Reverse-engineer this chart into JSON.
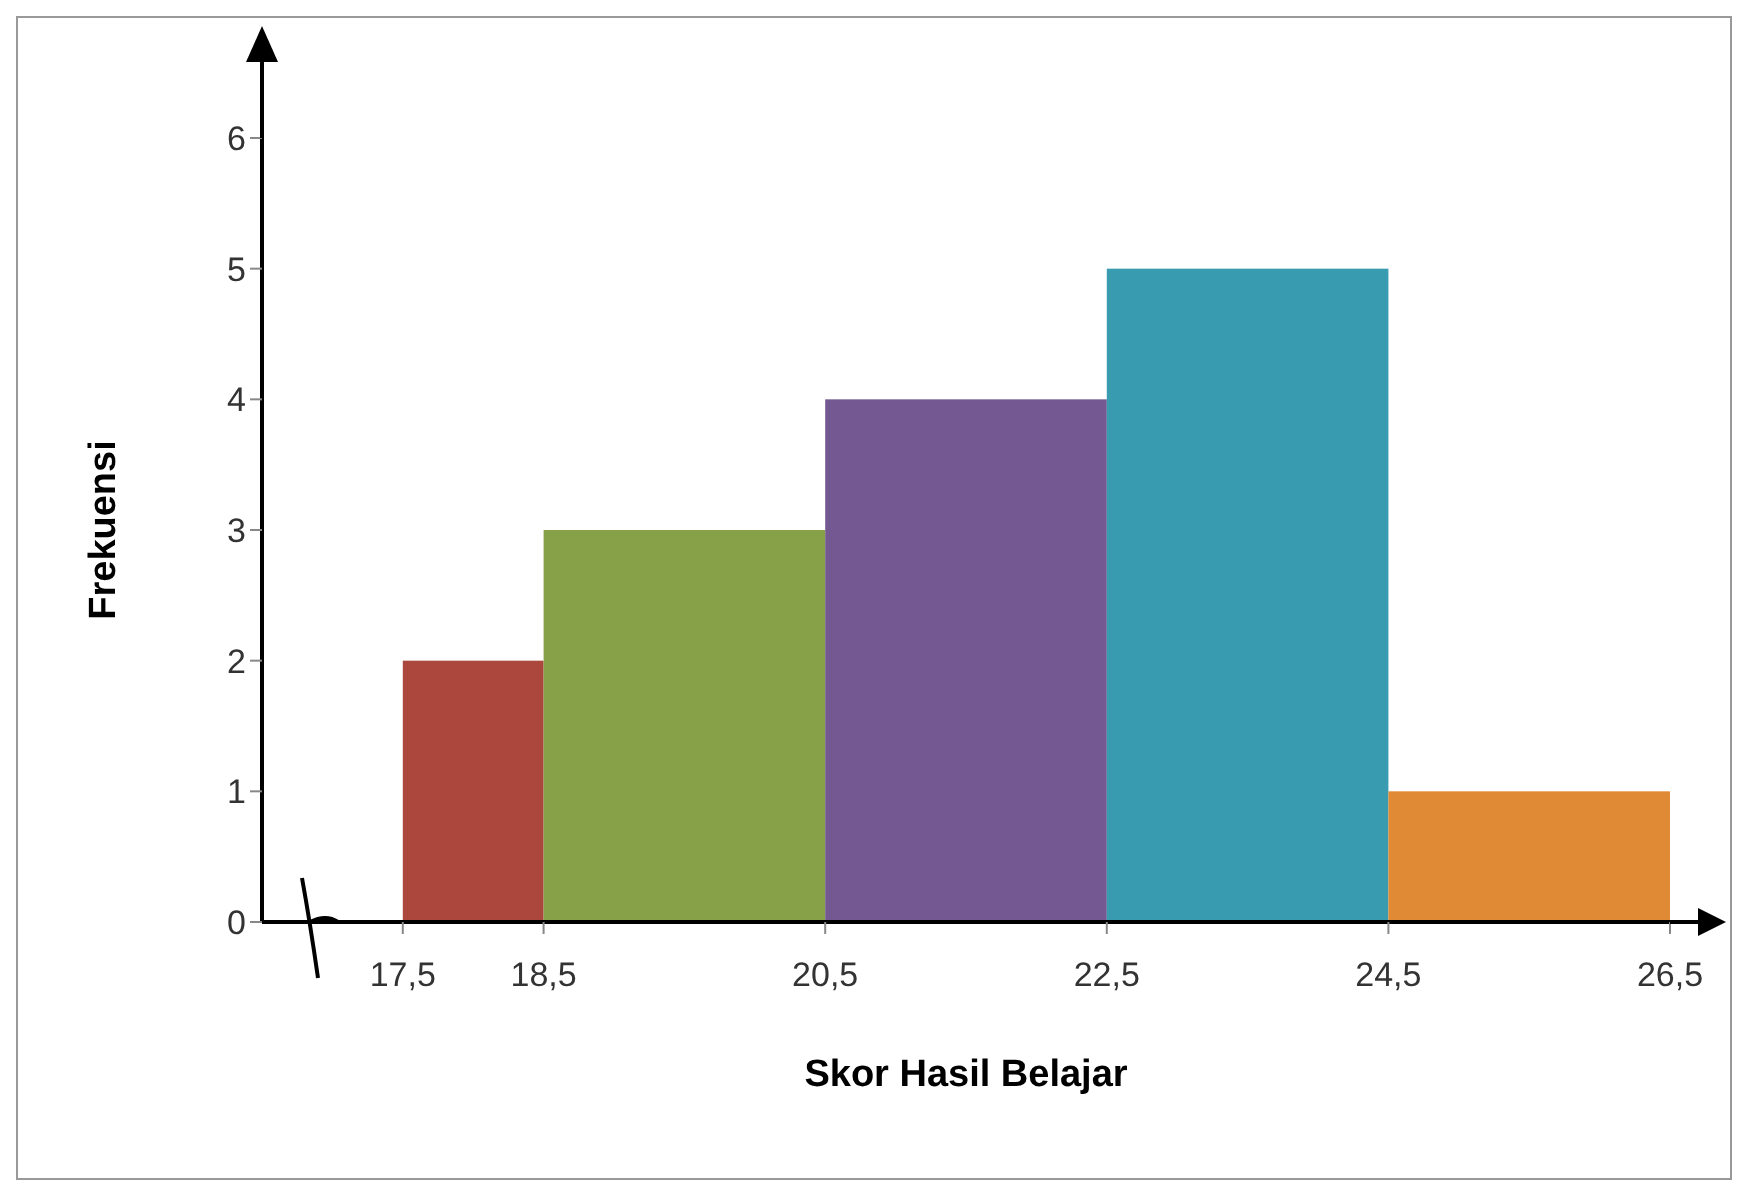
{
  "chart_data": {
    "type": "histogram",
    "xlabel": "Skor Hasil Belajar",
    "ylabel": "Frekuensi",
    "bins": [
      17.5,
      18.5,
      20.5,
      22.5,
      24.5,
      26.5
    ],
    "values": [
      2,
      3,
      4,
      5,
      1
    ],
    "colors": [
      "#ab473d",
      "#87a149",
      "#745891",
      "#389bb0",
      "#e08a35"
    ],
    "xlim": [
      16.5,
      26.5
    ],
    "xticks": [
      {
        "value": 17.5,
        "label": "17,5"
      },
      {
        "value": 18.5,
        "label": "18,5"
      },
      {
        "value": 20.5,
        "label": "20,5"
      },
      {
        "value": 22.5,
        "label": "22,5"
      },
      {
        "value": 24.5,
        "label": "24,5"
      },
      {
        "value": 26.5,
        "label": "26,5"
      }
    ],
    "ylim": [
      0,
      6
    ],
    "yticks": [
      0,
      1,
      2,
      3,
      4,
      5,
      6
    ]
  }
}
